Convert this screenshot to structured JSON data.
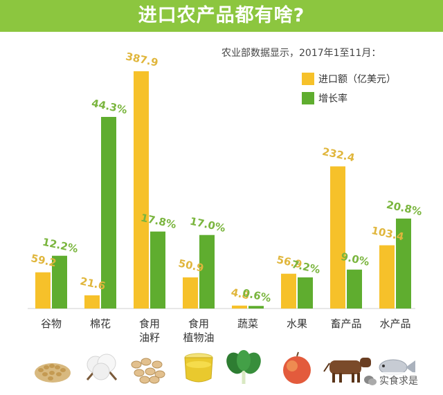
{
  "title": "进口农产品都有啥?",
  "subtitle": "农业部数据显示，2017年1至11月：",
  "legend": {
    "amount_label": "进口额（亿美元）",
    "growth_label": "增长率"
  },
  "colors": {
    "banner": "#8cc63f",
    "amount": "#f6c12a",
    "growth": "#5fad2f",
    "amount_text": "#e0b63c",
    "growth_text": "#7ab53e"
  },
  "watermark": "实食求是",
  "icon_names": [
    "grain-icon",
    "cotton-icon",
    "peanut-icon",
    "oil-icon",
    "vegetable-icon",
    "apple-icon",
    "cow-icon",
    "fish-icon"
  ],
  "chart_data": {
    "type": "bar",
    "categories": [
      "谷物",
      "棉花",
      "食用\n油籽",
      "食用\n植物油",
      "蔬菜",
      "水果",
      "畜产品",
      "水产品"
    ],
    "series": [
      {
        "name": "进口额（亿美元）",
        "values": [
          59.2,
          21.6,
          387.9,
          50.9,
          4.8,
          56.9,
          232.4,
          103.4
        ],
        "labels": [
          "59.2",
          "21.6",
          "387.9",
          "50.9",
          "4.8",
          "56.9",
          "232.4",
          "103.4"
        ]
      },
      {
        "name": "增长率",
        "values": [
          12.2,
          44.3,
          17.8,
          17.0,
          0.6,
          7.2,
          9.0,
          20.8
        ],
        "labels": [
          "12.2%",
          "44.3%",
          "17.8%",
          "17.0%",
          "0.6%",
          "7.2%",
          "9.0%",
          "20.8%"
        ]
      }
    ],
    "legend_position": "top-right",
    "grid": false
  }
}
